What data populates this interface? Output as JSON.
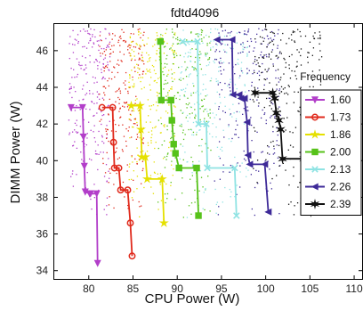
{
  "chart_data": {
    "type": "line",
    "title": "fdtd4096",
    "xlabel": "CPU Power (W)",
    "ylabel": "DIMM Power (W)",
    "xlim": [
      76,
      111
    ],
    "ylim": [
      33.5,
      47.5
    ],
    "xticks": [
      80,
      85,
      90,
      95,
      100,
      105,
      110
    ],
    "yticks": [
      34,
      36,
      38,
      40,
      42,
      44,
      46
    ],
    "grid": false,
    "legend": {
      "title": "Frequency",
      "placement": "right"
    },
    "series": [
      {
        "name": "1.60",
        "color": "#b23ec9",
        "marker": "triangle-down",
        "x": [
          78.0,
          79.3,
          79.4,
          79.5,
          79.6,
          80.1,
          80.2,
          80.9,
          81.0
        ],
        "y": [
          42.9,
          42.9,
          41.3,
          39.7,
          38.3,
          38.2,
          38.2,
          38.2,
          34.4
        ]
      },
      {
        "name": "1.73",
        "color": "#e02a1c",
        "marker": "circle",
        "x": [
          81.5,
          82.7,
          82.8,
          82.9,
          83.4,
          83.6,
          84.4,
          84.7,
          84.9
        ],
        "y": [
          42.9,
          42.9,
          41.0,
          39.6,
          39.6,
          38.4,
          38.4,
          36.6,
          34.8
        ]
      },
      {
        "name": "1.86",
        "color": "#e5e000",
        "marker": "star",
        "x": [
          84.8,
          85.8,
          85.9,
          86.0,
          86.4,
          86.6,
          88.3,
          88.5
        ],
        "y": [
          43.0,
          43.0,
          41.7,
          40.2,
          40.2,
          39.0,
          39.0,
          36.6
        ]
      },
      {
        "name": "2.00",
        "color": "#57c21a",
        "marker": "square",
        "x": [
          88.1,
          88.2,
          89.3,
          89.4,
          89.6,
          89.8,
          90.2,
          92.2,
          92.4
        ],
        "y": [
          46.5,
          43.3,
          43.3,
          42.2,
          40.9,
          40.4,
          39.6,
          39.6,
          37.0
        ]
      },
      {
        "name": "2.13",
        "color": "#8fe3e3",
        "marker": "x",
        "x": [
          90.6,
          92.3,
          92.4,
          93.3,
          93.4,
          96.5,
          96.7
        ],
        "y": [
          46.5,
          46.5,
          42.0,
          42.0,
          39.6,
          39.6,
          37.0
        ]
      },
      {
        "name": "2.26",
        "color": "#3e2a98",
        "marker": "triangle-left",
        "x": [
          94.5,
          96.2,
          96.3,
          97.0,
          97.2,
          97.6,
          97.9,
          98.0,
          98.2,
          99.9,
          100.3
        ],
        "y": [
          46.6,
          46.6,
          43.6,
          43.6,
          43.4,
          43.4,
          42.1,
          40.3,
          39.8,
          39.8,
          37.2
        ]
      },
      {
        "name": "2.39",
        "color": "#111111",
        "marker": "star6",
        "x": [
          98.8,
          100.8,
          101.0,
          101.2,
          101.5,
          101.7,
          101.9,
          104.3,
          104.4,
          105.1
        ],
        "y": [
          43.7,
          43.7,
          43.4,
          42.6,
          42.2,
          41.7,
          40.1,
          40.1,
          37.8,
          37.2
        ]
      }
    ]
  }
}
